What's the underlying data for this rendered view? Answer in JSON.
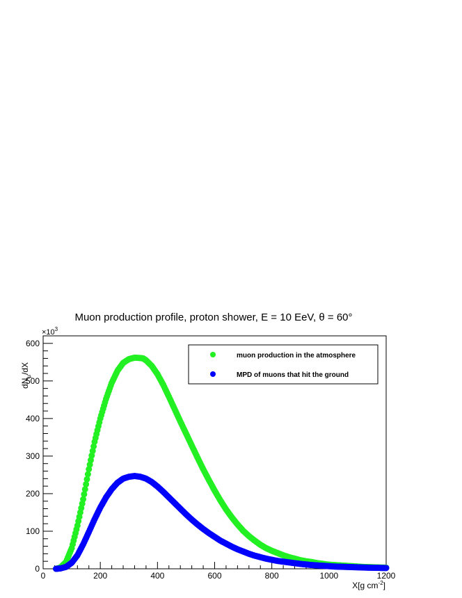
{
  "chart_data": {
    "type": "scatter",
    "title": "Muon production profile, proton shower, E = 10 EeV,  θ = 60°",
    "xlabel_main": "X[g cm",
    "xlabel_sup": "-2",
    "xlabel_end": "]",
    "ylabel_main": "dN",
    "ylabel_sub": "μ",
    "ylabel_end": "/dX",
    "y_multiplier_base": "×10",
    "y_multiplier_exp": "3",
    "xlim": [
      0,
      1200
    ],
    "ylim": [
      0,
      620
    ],
    "y_units_scale": 1000,
    "x_ticks": [
      0,
      200,
      400,
      600,
      800,
      1000,
      1200
    ],
    "y_ticks": [
      0,
      100,
      200,
      300,
      400,
      500,
      600
    ],
    "x_tick_labels": [
      "0",
      "200",
      "400",
      "600",
      "800",
      "1000",
      "1200"
    ],
    "y_tick_labels": [
      "0",
      "100",
      "200",
      "300",
      "400",
      "500",
      "600"
    ],
    "grid": false,
    "legend_position": "top-right",
    "series": [
      {
        "name": "muon production in the atmosphere",
        "color": "#22f022",
        "x": [
          45,
          60,
          80,
          100,
          120,
          140,
          160,
          180,
          200,
          220,
          240,
          260,
          280,
          300,
          320,
          340,
          350,
          360,
          380,
          400,
          420,
          440,
          460,
          480,
          500,
          520,
          540,
          560,
          580,
          600,
          620,
          640,
          660,
          680,
          700,
          720,
          740,
          760,
          780,
          800,
          820,
          840,
          860,
          880,
          900,
          920,
          940,
          960,
          980,
          1000,
          1020,
          1040,
          1060,
          1080,
          1100,
          1120,
          1140,
          1160,
          1180,
          1200
        ],
        "y": [
          0,
          3,
          18,
          55,
          115,
          185,
          265,
          338,
          400,
          452,
          495,
          527,
          548,
          558,
          562,
          561,
          560,
          555,
          540,
          518,
          490,
          458,
          425,
          392,
          360,
          328,
          296,
          265,
          236,
          208,
          182,
          158,
          137,
          118,
          101,
          87,
          75,
          64,
          55,
          48,
          42,
          36,
          31,
          27,
          23,
          20,
          18,
          15,
          13,
          11,
          10,
          9,
          8,
          7,
          6,
          5,
          4.5,
          4,
          3.5,
          3
        ]
      },
      {
        "name": "MPD of muons that hit the ground",
        "color": "#0000ff",
        "x": [
          45,
          60,
          80,
          100,
          120,
          140,
          160,
          180,
          200,
          220,
          240,
          260,
          280,
          300,
          320,
          340,
          360,
          380,
          400,
          420,
          440,
          460,
          480,
          500,
          520,
          540,
          560,
          580,
          600,
          620,
          640,
          660,
          680,
          700,
          720,
          740,
          760,
          780,
          800,
          820,
          840,
          860,
          880,
          900,
          920,
          940,
          960,
          980,
          1000,
          1020,
          1040,
          1060,
          1080,
          1100,
          1120,
          1140,
          1160,
          1180,
          1200
        ],
        "y": [
          0,
          1,
          5,
          16,
          36,
          65,
          98,
          132,
          163,
          190,
          212,
          229,
          240,
          245,
          247,
          245,
          240,
          231,
          219,
          205,
          190,
          175,
          160,
          145,
          131,
          118,
          106,
          95,
          85,
          75,
          67,
          59,
          52,
          46,
          40,
          35,
          31,
          27,
          24,
          21,
          19,
          17,
          15,
          13,
          11.5,
          10,
          9,
          8,
          7,
          6,
          5.5,
          5,
          4.5,
          4,
          3.5,
          3,
          2.7,
          2.4,
          2.1
        ]
      }
    ]
  }
}
